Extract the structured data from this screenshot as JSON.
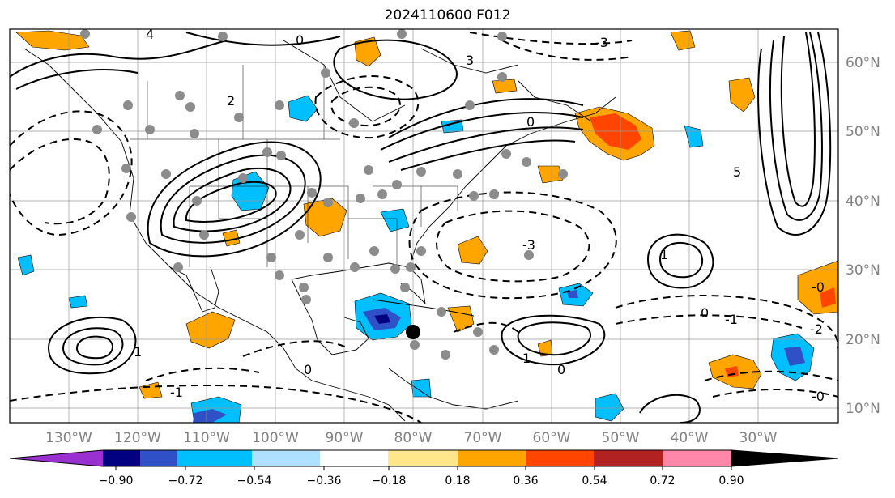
{
  "title": "2024110600 F012",
  "lon_labels": [
    "130°W",
    "120°W",
    "110°W",
    "100°W",
    "90°W",
    "80°W",
    "70°W",
    "60°W",
    "50°W",
    "40°W",
    "30°W"
  ],
  "lat_labels": [
    "60°N",
    "50°N",
    "40°N",
    "30°N",
    "20°N",
    "10°N"
  ],
  "colorbar": {
    "ticks": [
      "−0.90",
      "−0.72",
      "−0.54",
      "−0.36",
      "−0.18",
      "0.18",
      "0.36",
      "0.54",
      "0.72",
      "0.90"
    ],
    "colors": [
      "#9a30d0",
      "#000080",
      "#3050c8",
      "#00bfff",
      "#b0e0ff",
      "#ffffff",
      "#ffe68a",
      "#ffa500",
      "#ff4500",
      "#b22222",
      "#ff88aa"
    ]
  },
  "contour_labels": [
    "0",
    "1",
    "2",
    "3",
    "4",
    "5",
    "-0",
    "-1",
    "-2",
    "-3"
  ],
  "marker": "black dot",
  "colors": {
    "coast": "#000000",
    "grid": "#999999",
    "label_grey": "#808080"
  }
}
